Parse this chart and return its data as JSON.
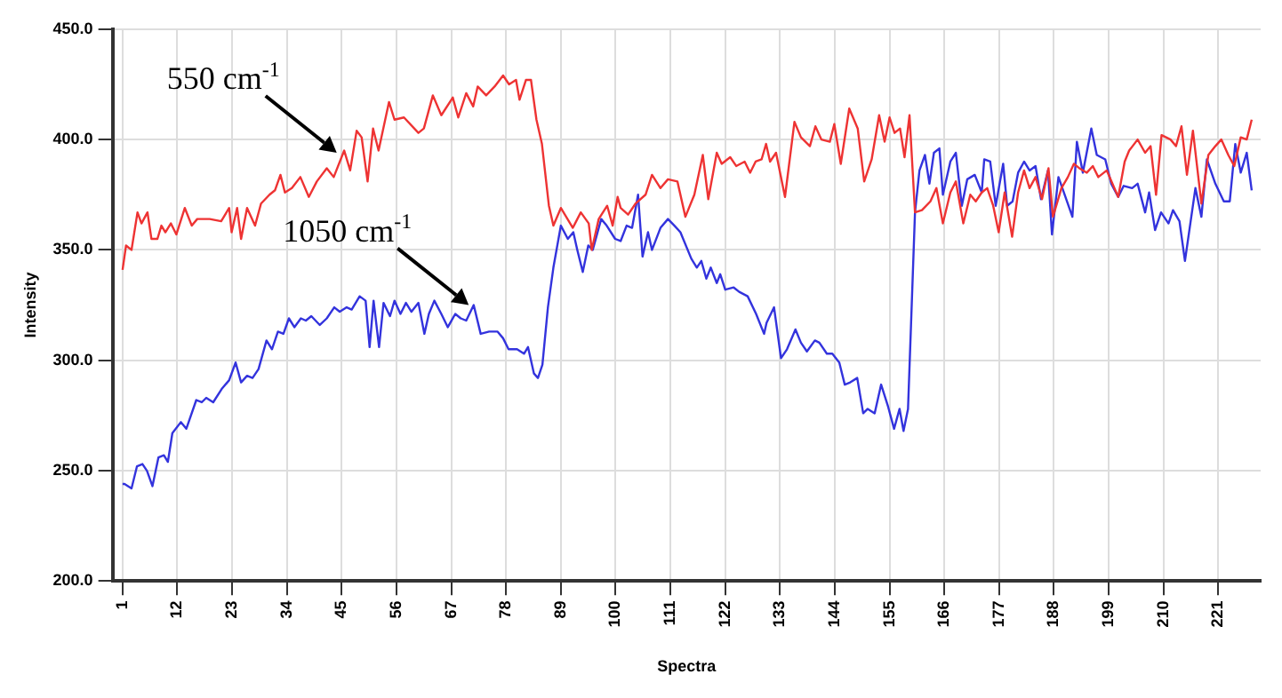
{
  "chart_data": {
    "type": "line",
    "xlabel": "Spectra",
    "ylabel": "Intensity",
    "xlim": [
      -1,
      229.5
    ],
    "xticks": [
      1,
      12,
      23,
      34,
      45,
      56,
      67,
      78,
      89,
      100,
      111,
      122,
      133,
      144,
      155,
      166,
      177,
      188,
      199,
      210,
      221
    ],
    "ylim": [
      200,
      450
    ],
    "yticks": [
      {
        "value": 200,
        "label": "200.0"
      },
      {
        "value": 250,
        "label": "250.0"
      },
      {
        "value": 300,
        "label": "300.0"
      },
      {
        "value": 350,
        "label": "350.0"
      },
      {
        "value": 400,
        "label": "400.0"
      },
      {
        "value": 450,
        "label": "450.0"
      }
    ],
    "grid": true,
    "legend": false,
    "annotations": [
      {
        "text": "550 cm$^{-1}$",
        "x": 44,
        "y": 394
      },
      {
        "text": "1050 cm$^{-1}$",
        "x": 70.5,
        "y": 325
      }
    ],
    "series": [
      {
        "color": "#ee3333",
        "x": [
          1,
          1.7,
          2.8,
          4,
          4.8,
          6,
          6.8,
          8,
          8.8,
          9.6,
          10.7,
          11.8,
          13.5,
          14.9,
          16,
          18.5,
          20.8,
          22.4,
          22.9,
          24,
          24.8,
          26,
          27.6,
          28.8,
          30.5,
          31.6,
          32.7,
          33.6,
          35,
          36.7,
          38.4,
          40,
          42,
          43.4,
          45.5,
          46.7,
          48,
          49,
          50.2,
          51.3,
          52.4,
          54.5,
          55.6,
          57.5,
          60.4,
          61.5,
          63.3,
          65,
          67.3,
          68.4,
          70,
          71.4,
          72.3,
          74,
          75.7,
          77.4,
          78.6,
          80,
          80.7,
          82,
          83,
          84.1,
          85.2,
          86.6,
          87.5,
          89,
          91.4,
          93,
          94.6,
          95.2,
          96.6,
          98.3,
          99.4,
          100.4,
          101,
          102.5,
          104,
          106,
          107.3,
          109,
          110.5,
          112.4,
          114,
          115.8,
          117.5,
          118.6,
          120.3,
          121.3,
          123,
          124.2,
          125.9,
          127,
          128.1,
          129.3,
          130.2,
          131,
          132.2,
          134,
          135.9,
          137.2,
          139,
          140.1,
          141.3,
          143,
          143.9,
          145.2,
          146.9,
          148.6,
          149.9,
          151.4,
          152.9,
          154,
          155,
          156,
          157.1,
          158,
          159,
          160.1,
          161.5,
          163.2,
          164.4,
          165.7,
          167.2,
          168.3,
          169.8,
          171.2,
          172.3,
          173.5,
          174.6,
          175.8,
          176.9,
          178.1,
          179.6,
          180.8,
          182,
          183.1,
          184.3,
          185.6,
          186.9,
          187.8,
          189.5,
          190.8,
          192,
          193.1,
          194.6,
          195.8,
          196.9,
          198.6,
          200.9,
          202.2,
          203.1,
          204.8,
          206.3,
          207.4,
          208.5,
          209.6,
          211.4,
          212.5,
          213.6,
          214.7,
          215.9,
          217.6,
          219,
          220.4,
          221.6,
          223,
          224.2,
          225.5,
          226.7,
          227.7
        ],
        "values": [
          341,
          352,
          350,
          367,
          362,
          367,
          355,
          355,
          361,
          358,
          362,
          357,
          369,
          361,
          364,
          364,
          363,
          369,
          358,
          369,
          355,
          369,
          361,
          371,
          375,
          377,
          384,
          376,
          378,
          383,
          374,
          381,
          387,
          383,
          395,
          386,
          404,
          401,
          381,
          405,
          395,
          417,
          409,
          410,
          403,
          405,
          420,
          411,
          419,
          410,
          421,
          415,
          424,
          420,
          424,
          429,
          425,
          427,
          418,
          427,
          427,
          409,
          398,
          370,
          361,
          369,
          360,
          367,
          362,
          350,
          364,
          370,
          361,
          374,
          369,
          366,
          371,
          375,
          384,
          378,
          382,
          381,
          365,
          375,
          393,
          373,
          394,
          389,
          392,
          388,
          390,
          385,
          390,
          391,
          398,
          390,
          394,
          374,
          408,
          401,
          397,
          406,
          400,
          399,
          407,
          389,
          414,
          405,
          381,
          391,
          411,
          399,
          410,
          403,
          405,
          392,
          411,
          367,
          368,
          372,
          378,
          362,
          376,
          381,
          362,
          375,
          372,
          376,
          378,
          370,
          358,
          376,
          356,
          376,
          386,
          378,
          383,
          373,
          387,
          365,
          378,
          383,
          389,
          387,
          385,
          388,
          383,
          386,
          374,
          390,
          395,
          400,
          394,
          397,
          375,
          402,
          400,
          397,
          406,
          384,
          404,
          371,
          393,
          397,
          400,
          393,
          388,
          401,
          400,
          409
        ]
      },
      {
        "color": "#3333dd",
        "x": [
          1,
          1.4,
          2.8,
          3.9,
          5,
          5.9,
          7,
          8.2,
          9.3,
          10.1,
          11,
          12.7,
          13.8,
          15.8,
          16.9,
          17.8,
          19.2,
          20.9,
          22.4,
          23.7,
          24.8,
          26,
          27.1,
          28.3,
          29.9,
          31,
          32.2,
          33.3,
          34.4,
          35.5,
          36.8,
          37.8,
          38.9,
          40.6,
          42,
          43.5,
          44.6,
          46,
          47,
          48.6,
          49.8,
          50.6,
          51.4,
          52.5,
          53.4,
          54.7,
          55.6,
          56.8,
          57.9,
          59,
          60.4,
          61.6,
          62.5,
          63.6,
          65,
          66.3,
          67.8,
          68.9,
          70,
          71.5,
          72.9,
          74.6,
          76.3,
          77.4,
          78.5,
          80.2,
          81.6,
          82.4,
          83.6,
          84.4,
          85.3,
          86.4,
          87.5,
          89,
          90.4,
          91.5,
          92.3,
          93.4,
          94.5,
          95.4,
          97.1,
          98.2,
          99.9,
          101,
          102.2,
          103.3,
          104.5,
          105.4,
          106.5,
          107.3,
          109,
          110.5,
          111.8,
          113,
          115.2,
          116.3,
          117.2,
          118.2,
          119.1,
          120.3,
          121,
          122,
          123.7,
          124.8,
          126.5,
          128.2,
          129.8,
          130.3,
          131.8,
          133.2,
          134.4,
          136.1,
          137.2,
          138.4,
          140,
          140.9,
          142.4,
          143.5,
          144.9,
          146,
          147.1,
          148.5,
          149.7,
          150.6,
          152,
          153.3,
          154.7,
          155.9,
          157,
          157.8,
          158.7,
          159.3,
          160.1,
          161,
          162.1,
          163,
          163.9,
          165,
          165.7,
          167.2,
          168.3,
          169.5,
          170.6,
          172.1,
          173.5,
          174,
          175.2,
          176.3,
          177.8,
          178.6,
          179.7,
          180.8,
          182,
          183.1,
          184.3,
          185.4,
          186.8,
          187.6,
          188.9,
          190,
          191.7,
          192.6,
          193.8,
          195.5,
          196.6,
          198.3,
          199.5,
          200.9,
          202,
          203.7,
          204.8,
          206.3,
          207.1,
          208.3,
          209.5,
          211,
          211.9,
          213.2,
          214.3,
          216.4,
          217.6,
          218.7,
          220.4,
          222.1,
          223.3,
          224.4,
          225.5,
          226.7,
          227.7
        ],
        "values": [
          244,
          244,
          242,
          252,
          253,
          250,
          243,
          256,
          257,
          254,
          267,
          272,
          269,
          282,
          281,
          283,
          281,
          287,
          291,
          299,
          290,
          293,
          292,
          296,
          309,
          305,
          313,
          312,
          319,
          315,
          319,
          318,
          320,
          316,
          319,
          324,
          322,
          324,
          323,
          329,
          327,
          306,
          327,
          306,
          326,
          320,
          327,
          321,
          326,
          322,
          326,
          312,
          321,
          327,
          321,
          315,
          321,
          319,
          318,
          325,
          312,
          313,
          313,
          310,
          305,
          305,
          303,
          306,
          294,
          292,
          298,
          324,
          342,
          361,
          355,
          358,
          350,
          340,
          352,
          350,
          364,
          361,
          355,
          354,
          361,
          360,
          375,
          347,
          358,
          350,
          360,
          364,
          361,
          358,
          346,
          342,
          345,
          337,
          342,
          335,
          339,
          332,
          333,
          331,
          329,
          321,
          312,
          317,
          324,
          301,
          305,
          314,
          308,
          304,
          309,
          308,
          303,
          303,
          299,
          289,
          290,
          292,
          276,
          278,
          276,
          289,
          279,
          269,
          278,
          268,
          278,
          316,
          367,
          386,
          393,
          380,
          394,
          396,
          375,
          390,
          394,
          370,
          382,
          384,
          376,
          391,
          390,
          370,
          389,
          370,
          372,
          385,
          390,
          386,
          388,
          373,
          386,
          357,
          383,
          376,
          365,
          399,
          385,
          405,
          393,
          391,
          380,
          374,
          379,
          378,
          380,
          367,
          376,
          359,
          367,
          362,
          368,
          363,
          345,
          378,
          365,
          391,
          380,
          372,
          372,
          398,
          385,
          394,
          377
        ]
      }
    ]
  }
}
